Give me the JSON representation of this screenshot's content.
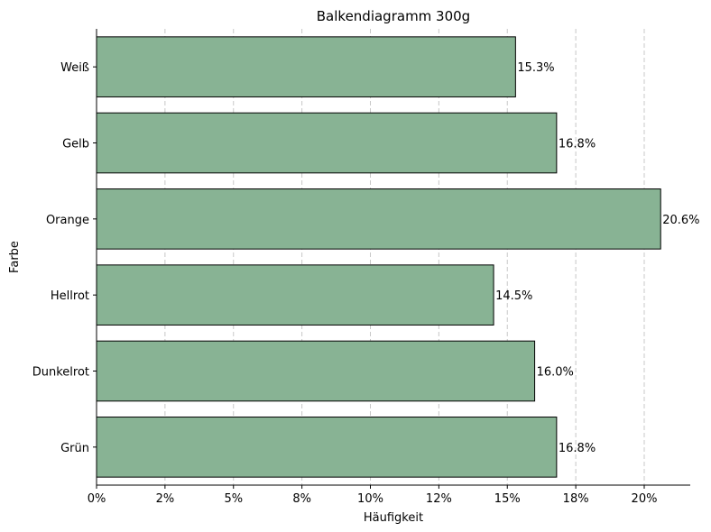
{
  "chart_data": {
    "type": "bar",
    "orientation": "horizontal",
    "title": "Balkendiagramm 300g",
    "xlabel": "Häufigkeit",
    "ylabel": "Farbe",
    "categories": [
      "Weiß",
      "Gelb",
      "Orange",
      "Hellrot",
      "Dunkelrot",
      "Grün"
    ],
    "values": [
      15.3,
      16.8,
      20.6,
      14.5,
      16.0,
      16.8
    ],
    "data_labels": [
      "15.3%",
      "16.8%",
      "20.6%",
      "14.5%",
      "16.0%",
      "16.8%"
    ],
    "x_ticks": [
      0,
      2.5,
      5,
      7.5,
      10,
      12.5,
      15,
      17.5,
      20
    ],
    "x_tick_labels": [
      "0%",
      "2%",
      "5%",
      "8%",
      "10%",
      "12%",
      "15%",
      "18%",
      "20%"
    ],
    "xlim": [
      0,
      21.63
    ],
    "grid": "vertical dashed",
    "colors": {
      "bar": "#88b394",
      "edge": "#000000",
      "grid": "#c8c8c8"
    }
  }
}
